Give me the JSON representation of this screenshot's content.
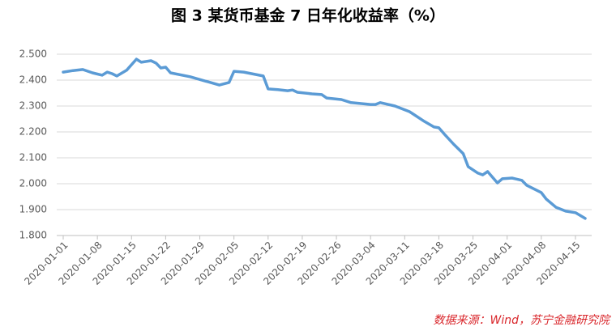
{
  "chart_data": {
    "type": "line",
    "title": "图 3 某货币基金 7 日年化收益率（%）",
    "source": "数据来源：Wind，苏宁金融研究院",
    "x": [
      "2020-01-01",
      "2020-01-03",
      "2020-01-05",
      "2020-01-07",
      "2020-01-09",
      "2020-01-10",
      "2020-01-11",
      "2020-01-12",
      "2020-01-14",
      "2020-01-16",
      "2020-01-17",
      "2020-01-19",
      "2020-01-20",
      "2020-01-21",
      "2020-01-22",
      "2020-01-23",
      "2020-01-27",
      "2020-02-02",
      "2020-02-04",
      "2020-02-05",
      "2020-02-07",
      "2020-02-11",
      "2020-02-12",
      "2020-02-14",
      "2020-02-16",
      "2020-02-17",
      "2020-02-18",
      "2020-02-21",
      "2020-02-23",
      "2020-02-24",
      "2020-02-27",
      "2020-02-29",
      "2020-03-04",
      "2020-03-05",
      "2020-03-06",
      "2020-03-09",
      "2020-03-12",
      "2020-03-15",
      "2020-03-17",
      "2020-03-18",
      "2020-03-19",
      "2020-03-21",
      "2020-03-23",
      "2020-03-24",
      "2020-03-26",
      "2020-03-27",
      "2020-03-28",
      "2020-03-30",
      "2020-03-31",
      "2020-04-02",
      "2020-04-04",
      "2020-04-05",
      "2020-04-08",
      "2020-04-09",
      "2020-04-11",
      "2020-04-13",
      "2020-04-15",
      "2020-04-17"
    ],
    "series": [
      {
        "name": "7日年化收益率",
        "color": "#5b9bd5",
        "values": [
          2.431,
          2.437,
          2.441,
          2.428,
          2.419,
          2.431,
          2.425,
          2.416,
          2.438,
          2.481,
          2.469,
          2.475,
          2.466,
          2.447,
          2.45,
          2.428,
          2.413,
          2.381,
          2.391,
          2.434,
          2.431,
          2.416,
          2.366,
          2.363,
          2.359,
          2.362,
          2.353,
          2.347,
          2.344,
          2.331,
          2.325,
          2.313,
          2.306,
          2.306,
          2.313,
          2.3,
          2.278,
          2.241,
          2.219,
          2.216,
          2.194,
          2.153,
          2.116,
          2.066,
          2.041,
          2.034,
          2.047,
          2.003,
          2.019,
          2.022,
          2.013,
          1.994,
          1.966,
          1.941,
          1.909,
          1.894,
          1.888,
          1.866
        ]
      }
    ],
    "xlim": [
      "2020-01-01",
      "2020-04-17"
    ],
    "xticks": [
      "2020-01-01",
      "2020-01-08",
      "2020-01-15",
      "2020-01-22",
      "2020-01-29",
      "2020-02-05",
      "2020-02-12",
      "2020-02-19",
      "2020-02-26",
      "2020-03-04",
      "2020-03-11",
      "2020-03-18",
      "2020-03-25",
      "2020-04-01",
      "2020-04-08",
      "2020-04-15"
    ],
    "ylim": [
      1.8,
      2.5
    ],
    "yticks": [
      {
        "value": 1.8,
        "label": "1.800"
      },
      {
        "value": 1.9,
        "label": "1.900"
      },
      {
        "value": 2.0,
        "label": "2.000"
      },
      {
        "value": 2.1,
        "label": "2.100"
      },
      {
        "value": 2.2,
        "label": "2.200"
      },
      {
        "value": 2.3,
        "label": "2.300"
      },
      {
        "value": 2.4,
        "label": "2.400"
      },
      {
        "value": 2.5,
        "label": "2.500"
      }
    ],
    "grid": true
  }
}
